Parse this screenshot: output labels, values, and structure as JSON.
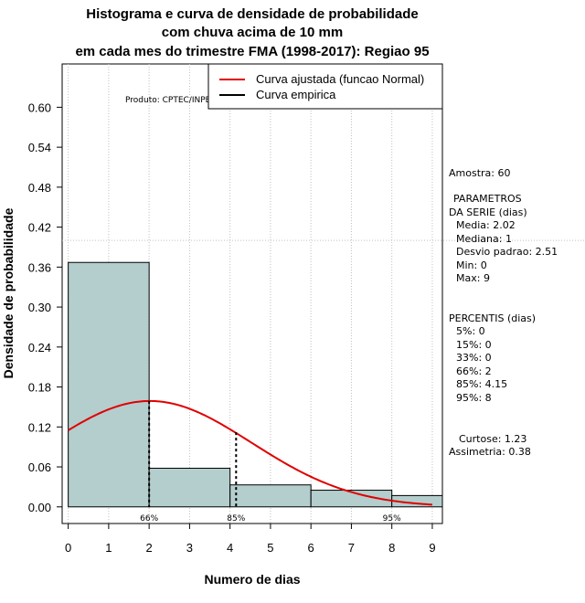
{
  "chart_data": {
    "type": "bar",
    "title": [
      "Histograma e curva de densidade de probabilidade",
      "com chuva acima de 10 mm",
      "em cada mes do trimestre FMA (1998-2017): Regiao 95"
    ],
    "xlabel": "Numero de dias",
    "ylabel": "Densidade de probabilidade",
    "xlim": [
      -0.15,
      9.25
    ],
    "ylim": [
      -0.025,
      0.665
    ],
    "x_ticks": [
      0,
      1,
      2,
      3,
      4,
      5,
      6,
      7,
      8,
      9
    ],
    "y_ticks": [
      0.0,
      0.06,
      0.12,
      0.18,
      0.24,
      0.3,
      0.36,
      0.42,
      0.48,
      0.54,
      0.6
    ],
    "y_tick_labels": [
      "0.00",
      "0.06",
      "0.12",
      "0.18",
      "0.24",
      "0.30",
      "0.36",
      "0.42",
      "0.48",
      "0.54",
      "0.60"
    ],
    "reference_line_y": 0.4,
    "bins": [
      {
        "from": 0,
        "to": 2,
        "density": 0.367
      },
      {
        "from": 2,
        "to": 4,
        "density": 0.058
      },
      {
        "from": 4,
        "to": 6,
        "density": 0.033
      },
      {
        "from": 6,
        "to": 8,
        "density": 0.025
      },
      {
        "from": 8,
        "to": 9.5,
        "density": 0.017
      }
    ],
    "normal_fit": {
      "mean": 2.02,
      "sd": 2.51,
      "x_range": [
        0,
        9
      ],
      "color": "#e00000"
    },
    "percentile_lines": [
      {
        "label": "66%",
        "x": 2,
        "y_top": 0.159
      },
      {
        "label": "85%",
        "x": 4.15,
        "y_top": 0.112
      },
      {
        "label": "95%",
        "x": 8,
        "y_top": 0.0
      }
    ],
    "legend": {
      "position": "top-right",
      "entries": [
        {
          "label": "Curva ajustada (funcao Normal)",
          "color": "#e00000"
        },
        {
          "label": "Curva empirica",
          "color": "#000000"
        }
      ]
    },
    "colors": {
      "bar_fill": "#b4cdcd",
      "bar_stroke": "#000000",
      "grid": "#c0c0c0"
    },
    "product_label": "Produto: CPTEC/INPE",
    "stats": {
      "amostra": "Amostra: 60",
      "parametros_title_1": "PARAMETROS",
      "parametros_title_2": "DA SERIE (dias)",
      "media": "Media: 2.02",
      "mediana": "Mediana: 1",
      "desvio": "Desvio padrao: 2.51",
      "min": "Min: 0",
      "max": "Max: 9",
      "percentis_title": "PERCENTIS (dias)",
      "p5": "5%: 0",
      "p15": "15%: 0",
      "p33": "33%: 0",
      "p66": "66%: 2",
      "p85": "85%: 4.15",
      "p95": "95%: 8",
      "curtose": "Curtose: 1.23",
      "assimetria": "Assimetria: 0.38"
    }
  }
}
